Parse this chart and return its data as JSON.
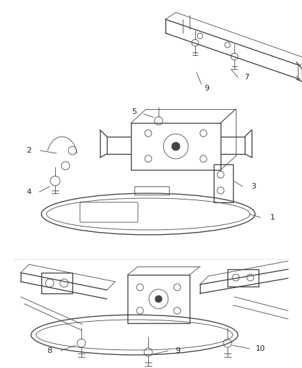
{
  "bg_color": "#ffffff",
  "line_color": "#444444",
  "label_color": "#222222",
  "figsize": [
    4.38,
    5.33
  ],
  "dpi": 100
}
